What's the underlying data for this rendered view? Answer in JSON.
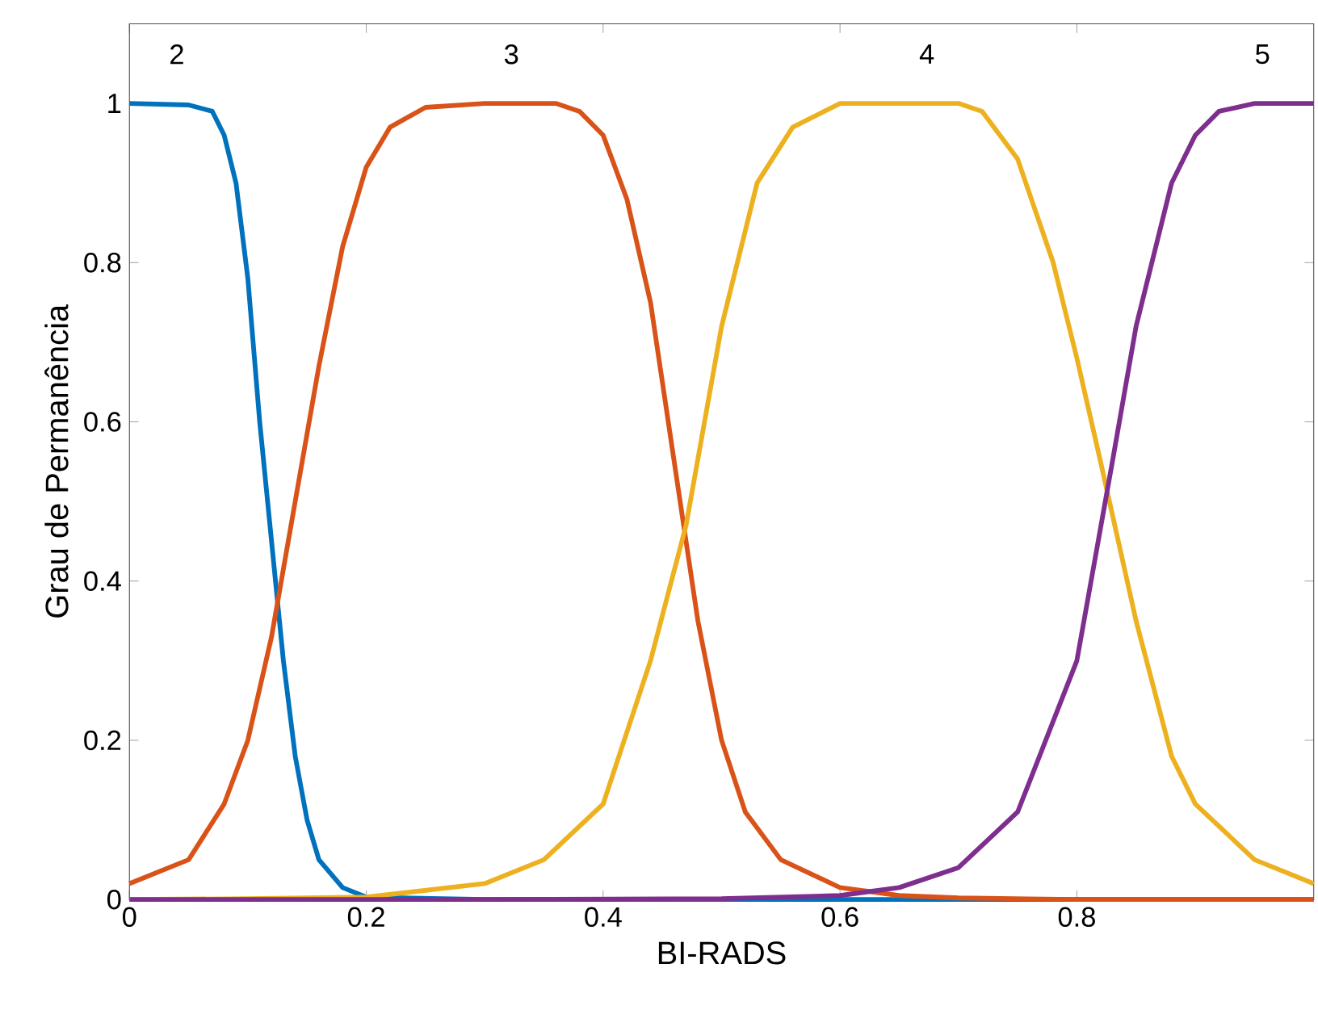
{
  "chart_data": {
    "type": "line",
    "xlabel": "BI-RADS",
    "ylabel": "Grau de Permanência",
    "xlim": [
      0,
      1
    ],
    "ylim": [
      0,
      1.1
    ],
    "xticks": [
      0,
      0.2,
      0.4,
      0.6,
      0.8
    ],
    "yticks": [
      0,
      0.2,
      0.4,
      0.6,
      0.8,
      1
    ],
    "grid": false,
    "marker": "none",
    "line_style": "solid",
    "annotations": [
      "2",
      "3",
      "4",
      "5"
    ],
    "series": [
      {
        "color": "#0072bd",
        "x": [
          0,
          0.05,
          0.07,
          0.08,
          0.09,
          0.1,
          0.11,
          0.12,
          0.13,
          0.14,
          0.15,
          0.16,
          0.18,
          0.2,
          0.3,
          0.5,
          0.7,
          1
        ],
        "values": [
          1,
          0.998,
          0.99,
          0.96,
          0.9,
          0.78,
          0.6,
          0.45,
          0.3,
          0.18,
          0.1,
          0.05,
          0.015,
          0.003,
          0,
          0,
          0,
          0
        ]
      },
      {
        "color": "#d95319",
        "x": [
          0,
          0.05,
          0.08,
          0.1,
          0.12,
          0.14,
          0.16,
          0.18,
          0.2,
          0.22,
          0.25,
          0.3,
          0.36,
          0.38,
          0.4,
          0.42,
          0.44,
          0.46,
          0.48,
          0.5,
          0.52,
          0.55,
          0.6,
          0.65,
          0.7,
          0.8,
          1
        ],
        "values": [
          0.02,
          0.05,
          0.12,
          0.2,
          0.33,
          0.5,
          0.67,
          0.82,
          0.92,
          0.97,
          0.995,
          1,
          1,
          0.99,
          0.96,
          0.88,
          0.75,
          0.55,
          0.35,
          0.2,
          0.11,
          0.05,
          0.015,
          0.005,
          0.002,
          0,
          0
        ]
      },
      {
        "color": "#edb120",
        "x": [
          0,
          0.1,
          0.2,
          0.3,
          0.35,
          0.4,
          0.44,
          0.47,
          0.5,
          0.53,
          0.56,
          0.6,
          0.7,
          0.72,
          0.75,
          0.78,
          0.8,
          0.82,
          0.85,
          0.88,
          0.9,
          0.95,
          1
        ],
        "values": [
          0,
          0.001,
          0.003,
          0.02,
          0.05,
          0.12,
          0.3,
          0.47,
          0.72,
          0.9,
          0.97,
          1,
          1,
          0.99,
          0.93,
          0.8,
          0.68,
          0.55,
          0.35,
          0.18,
          0.12,
          0.05,
          0.02
        ]
      },
      {
        "color": "#7e2f8e",
        "x": [
          0,
          0.3,
          0.5,
          0.6,
          0.65,
          0.7,
          0.75,
          0.8,
          0.83,
          0.85,
          0.88,
          0.9,
          0.92,
          0.95,
          1
        ],
        "values": [
          0,
          0,
          0.001,
          0.005,
          0.015,
          0.04,
          0.11,
          0.3,
          0.55,
          0.72,
          0.9,
          0.96,
          0.99,
          1,
          1
        ]
      }
    ]
  }
}
